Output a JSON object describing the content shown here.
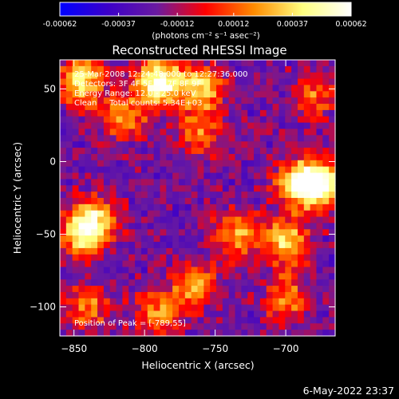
{
  "chart_data": {
    "type": "heatmap",
    "title": "Reconstructed RHESSI Image",
    "xlabel": "Heliocentric X (arcsec)",
    "ylabel": "Heliocentric Y (arcsec)",
    "xlim": [
      -860,
      -665
    ],
    "ylim": [
      -120,
      70
    ],
    "x_ticks": [
      -850,
      -800,
      -750,
      -700
    ],
    "y_ticks": [
      50,
      0,
      -50,
      -100
    ],
    "x_tick_labels": [
      "−850",
      "−800",
      "−750",
      "−700"
    ],
    "y_tick_labels": [
      "50",
      "0",
      "−50",
      "−100"
    ],
    "colorbar": {
      "min": -0.00062,
      "max": 0.00062,
      "ticks": [
        -0.00062,
        -0.00037,
        -0.00012,
        0.00012,
        0.00037,
        0.00062
      ],
      "tick_labels": [
        "-0.00062",
        "-0.00037",
        "-0.00012",
        "0.00012",
        "0.00037",
        "0.00062"
      ],
      "unit_label": "(photons cm⁻² s⁻¹ asec⁻²)",
      "colors": [
        "#0000ff",
        "#3c00c8",
        "#6a1aa0",
        "#ff0000",
        "#ff8c00",
        "#ffff80",
        "#ffffff"
      ]
    },
    "annotations": {
      "time": "25-Mar-2008 12:24:48.000 to 12:27:36.000",
      "detectors": "Detectors: 3F 4F 5F 6F 7F 8F 9F",
      "energy": "Energy Range: 12.0 - 25.0 keV",
      "method": "Clean     Total counts: 5.34E+03",
      "peak": "Position of Peak = [-789,55]"
    },
    "peak": {
      "x": -789,
      "y": 55
    },
    "hot_regions": [
      {
        "x": -790,
        "y": 55,
        "value": 0.00062
      },
      {
        "x": -845,
        "y": 55,
        "value": 0.00045
      },
      {
        "x": -760,
        "y": 50,
        "value": 0.0004
      },
      {
        "x": -690,
        "y": -15,
        "value": 0.0005
      },
      {
        "x": -675,
        "y": -15,
        "value": 0.00045
      },
      {
        "x": -700,
        "y": -55,
        "value": 0.0004
      },
      {
        "x": -845,
        "y": -50,
        "value": 0.00038
      },
      {
        "x": -835,
        "y": -40,
        "value": 0.0003
      },
      {
        "x": -815,
        "y": 30,
        "value": 0.00025
      },
      {
        "x": -765,
        "y": -85,
        "value": 0.0003
      },
      {
        "x": -790,
        "y": -105,
        "value": 0.00022
      },
      {
        "x": -735,
        "y": -50,
        "value": 0.00025
      },
      {
        "x": -700,
        "y": -95,
        "value": 0.00022
      },
      {
        "x": -840,
        "y": -100,
        "value": 0.00018
      },
      {
        "x": -760,
        "y": 20,
        "value": 0.00016
      },
      {
        "x": -680,
        "y": 45,
        "value": 0.00015
      }
    ]
  },
  "footer": {
    "timestamp": "6-May-2022 23:37"
  }
}
